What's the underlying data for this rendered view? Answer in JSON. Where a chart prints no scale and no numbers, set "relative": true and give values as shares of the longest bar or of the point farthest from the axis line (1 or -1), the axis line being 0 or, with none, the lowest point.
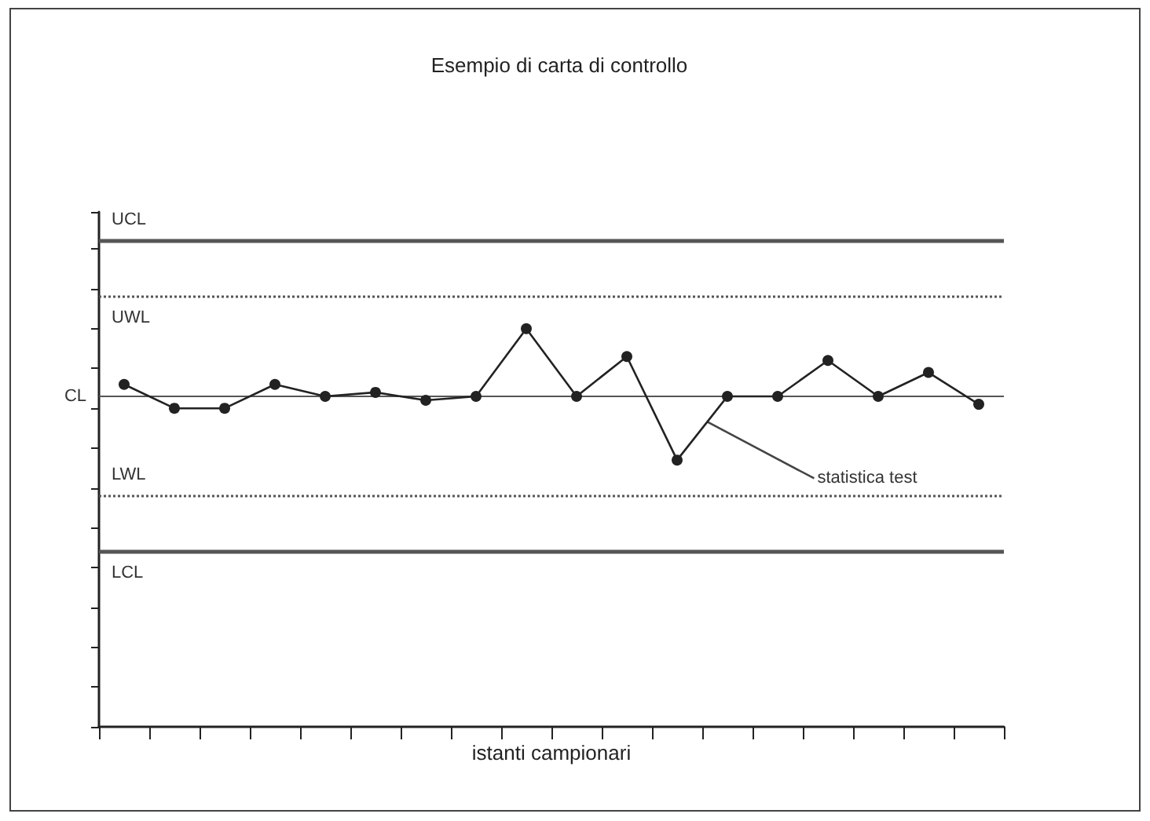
{
  "chart_data": {
    "type": "line",
    "title": "Esempio di carta di controllo",
    "xlabel": "istanti campionari",
    "relative": true,
    "categories": [
      null,
      null,
      null,
      null,
      null,
      null,
      null,
      null,
      null,
      null,
      null,
      null,
      null,
      null,
      null,
      null,
      null,
      null
    ],
    "series": [
      {
        "color": "#222222",
        "values": [
          0.86,
          0.8,
          0.8,
          0.86,
          0.83,
          0.84,
          0.82,
          0.83,
          1,
          0.83,
          0.93,
          0.67,
          0.83,
          0.83,
          0.92,
          0.83,
          0.89,
          0.81
        ]
      }
    ],
    "ref_lines": [
      {
        "axis": "y",
        "value": 1.22,
        "label": "UCL",
        "color": "#555555",
        "line_style": "solid"
      },
      {
        "axis": "y",
        "value": 1.08,
        "label": "UWL",
        "color": "#555555",
        "line_style": "dotted"
      },
      {
        "axis": "y",
        "value": 0.83,
        "label": "CL",
        "color": "#555555",
        "line_style": "solid"
      },
      {
        "axis": "y",
        "value": 0.58,
        "label": "LWL",
        "color": "#555555",
        "line_style": "dotted"
      },
      {
        "axis": "y",
        "value": 0.44,
        "label": "LCL",
        "color": "#555555",
        "line_style": "solid"
      }
    ],
    "annotations": [
      "statistica test"
    ],
    "marker": "circle",
    "line_style": "solid"
  }
}
